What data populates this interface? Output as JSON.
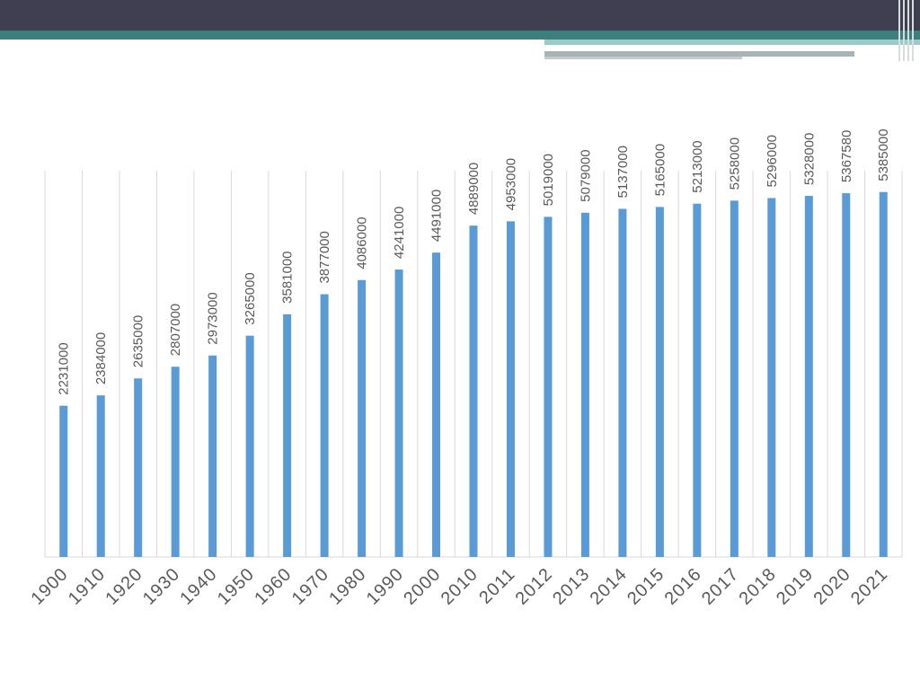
{
  "colors": {
    "bar": "#5b9bd5",
    "grid": "#d9d9d9",
    "header_dark": "#3f3f51",
    "header_teal": "#3d7f7c",
    "text": "#595959"
  },
  "chart_data": {
    "type": "bar",
    "title": "",
    "xlabel": "",
    "ylabel": "",
    "categories": [
      "1900",
      "1910",
      "1920",
      "1930",
      "1940",
      "1950",
      "1960",
      "1970",
      "1980",
      "1990",
      "2000",
      "2010",
      "2011",
      "2012",
      "2013",
      "2014",
      "2015",
      "2016",
      "2017",
      "2018",
      "2019",
      "2020",
      "2021"
    ],
    "values": [
      2231000,
      2384000,
      2635000,
      2807000,
      2973000,
      3265000,
      3581000,
      3877000,
      4086000,
      4241000,
      4491000,
      4889000,
      4953000,
      5019000,
      5079000,
      5137000,
      5165000,
      5213000,
      5258000,
      5296000,
      5328000,
      5367580,
      5385000
    ],
    "data_labels": [
      "2231000",
      "2384000",
      "2635000",
      "2807000",
      "2973000",
      "3265000",
      "3581000",
      "3877000",
      "4086000",
      "4241000",
      "4491000",
      "4889000",
      "4953000",
      "5019000",
      "5079000",
      "5137000",
      "5165000",
      "5213000",
      "5258000",
      "5296000",
      "5328000",
      "5367580",
      "5385000"
    ],
    "ylim": [
      0,
      5700000
    ],
    "grid": "vertical category separators",
    "legend": "none"
  }
}
